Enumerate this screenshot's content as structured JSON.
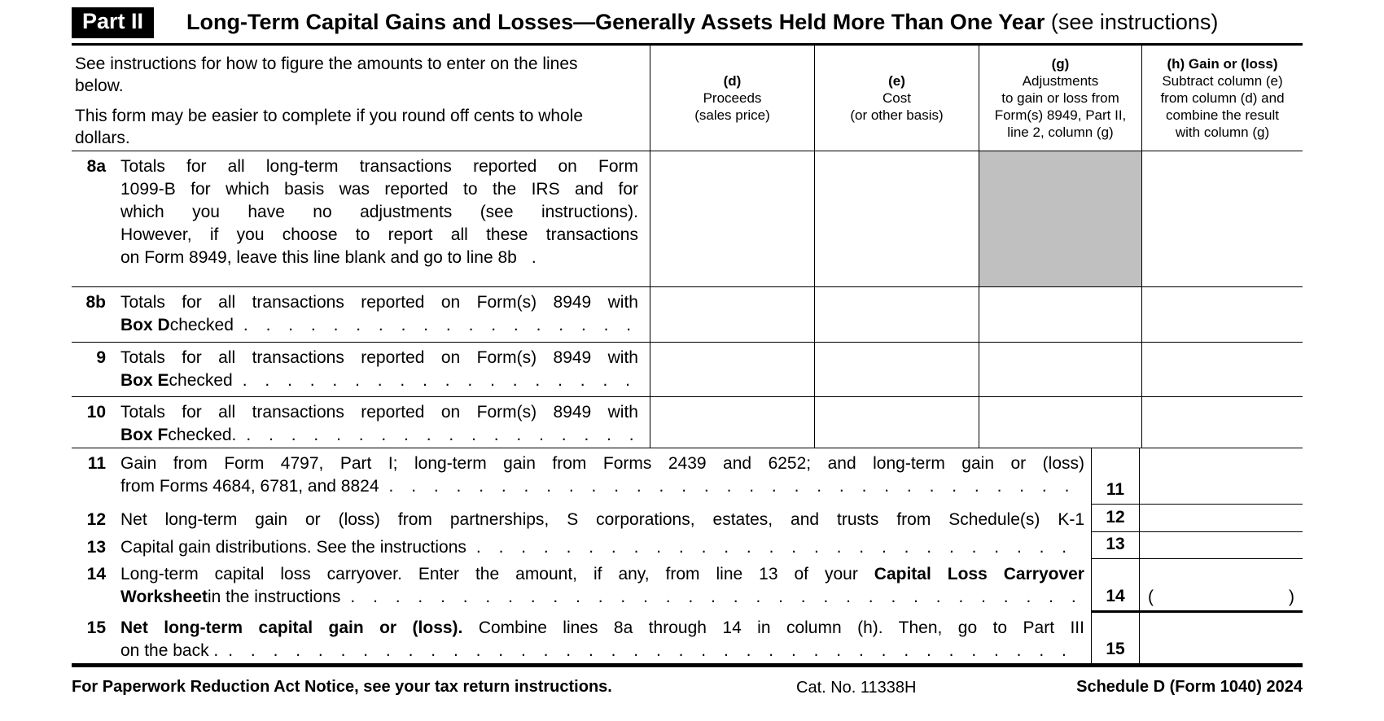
{
  "leader": ". . . . . . . . . . . . . . . . . . . . . . . . . . . . . . . . . . . . . . . .",
  "header": {
    "part_label": "Part II",
    "title": "Long-Term Capital Gains and Losses—Generally Assets Held More Than One Year",
    "title_note": " (see instructions)"
  },
  "table": {
    "instructions": {
      "p1": "See instructions for how to figure the amounts to enter on the lines below.",
      "p2": "This form may be easier to complete if you round off cents to whole dollars."
    },
    "columns": {
      "d": {
        "tag": "(d)",
        "l1": "Proceeds",
        "l2": "(sales price)"
      },
      "e": {
        "tag": "(e)",
        "l1": "Cost",
        "l2": "(or other basis)"
      },
      "g": {
        "tag": "(g)",
        "l1": "Adjustments",
        "l2": "to gain or loss from",
        "l3": "Form(s) 8949, Part II,",
        "l4": "line 2, column (g)"
      },
      "h": {
        "tag": "(h) Gain or (loss)",
        "l1": "Subtract column (e)",
        "l2": "from column (d) and",
        "l3": "combine the result",
        "l4": "with column (g)"
      }
    },
    "rows": {
      "r8a": {
        "num": "8a",
        "l1": "Totals for all long-term transactions reported on Form",
        "l2": "1099-B for which basis was reported to the IRS and for",
        "l3": "which you have no adjustments (see instructions).",
        "l4": "However, if you choose to report all these transactions",
        "l5": "on Form 8949, leave this line blank and go to line 8b",
        "trail": "."
      },
      "r8b": {
        "num": "8b",
        "l1": "Totals for all transactions reported on Form(s) 8949 with",
        "bold": "Box D",
        "rest": " checked"
      },
      "r9": {
        "num": "9",
        "l1": "Totals for all transactions reported on Form(s) 8949 with",
        "bold": "Box E",
        "rest": " checked"
      },
      "r10": {
        "num": "10",
        "l1": "Totals for all transactions reported on Form(s) 8949 with",
        "bold": "Box F",
        "rest": " checked."
      },
      "r11": {
        "num": "11",
        "box": "11",
        "l1": "Gain from Form 4797, Part I; long-term gain from Forms 2439 and 6252; and long-term gain or (loss)",
        "l2": "from Forms 4684, 6781, and 8824"
      },
      "r12": {
        "num": "12",
        "box": "12",
        "l1": "Net long-term gain or (loss) from partnerships, S corporations, estates, and trusts from Schedule(s) K-1"
      },
      "r13": {
        "num": "13",
        "box": "13",
        "l1": "Capital gain distributions. See the instructions"
      },
      "r14": {
        "num": "14",
        "box": "14",
        "l1a": "Long-term capital loss carryover. Enter the amount, if any, from line 13 of your ",
        "l1b": "Capital Loss Carryover",
        "l2a": "Worksheet",
        "l2b": " in the instructions",
        "paren_open": "(",
        "paren_close": ")"
      },
      "r15": {
        "num": "15",
        "box": "15",
        "l1a": "Net long-term capital gain or (loss).",
        "l1b": " Combine lines 8a through 14 in column (h). Then, go to Part III",
        "l2": "on the back ."
      }
    }
  },
  "footer": {
    "left": "For Paperwork Reduction Act Notice, see your tax return instructions.",
    "cat": "Cat. No. 11338H",
    "right": "Schedule D (Form 1040) 2024"
  }
}
